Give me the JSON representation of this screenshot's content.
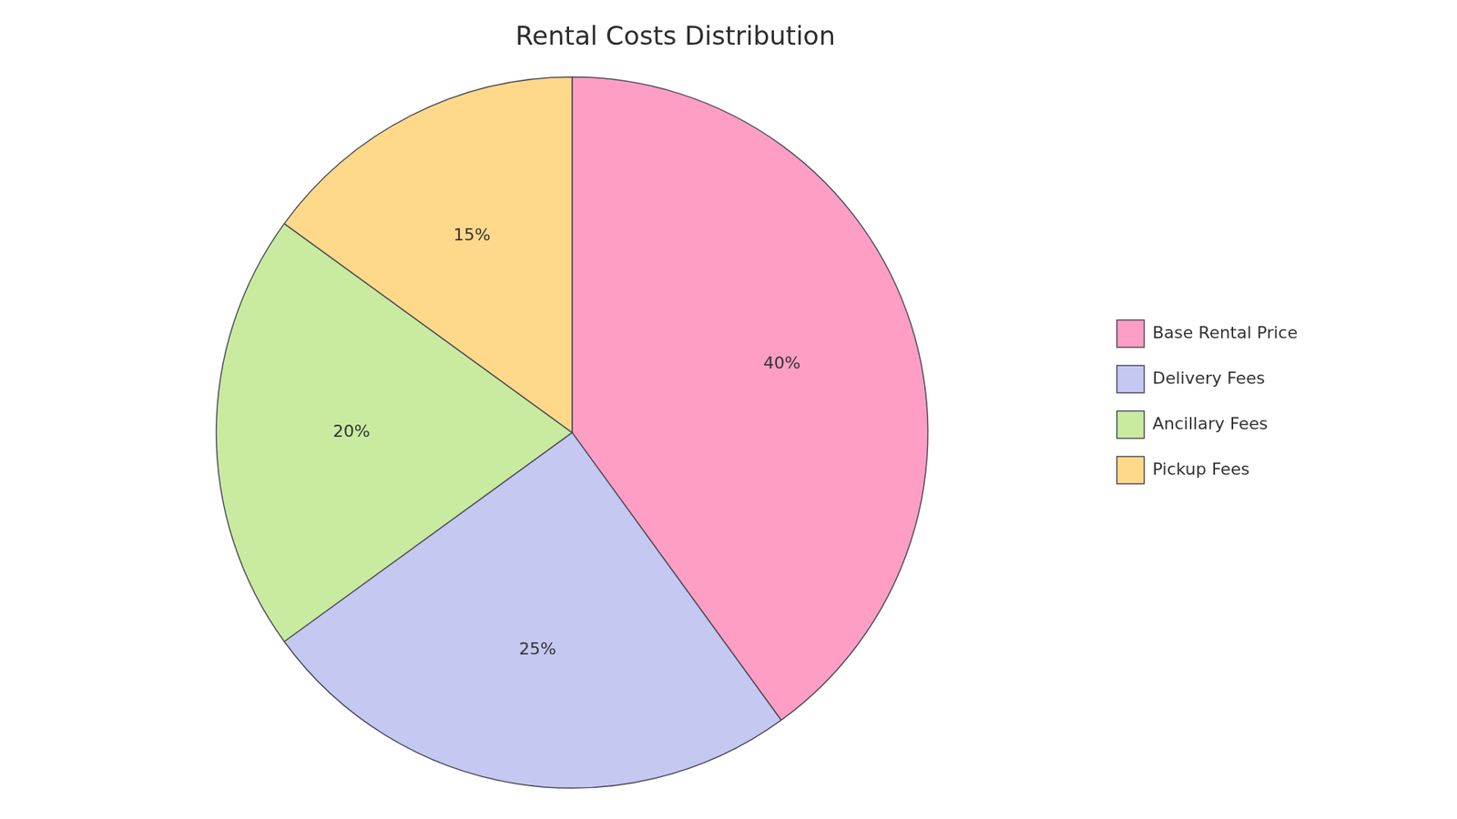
{
  "chart_data": {
    "type": "pie",
    "title": "Rental Costs Distribution",
    "categories": [
      "Base Rental Price",
      "Delivery Fees",
      "Ancillary Fees",
      "Pickup Fees"
    ],
    "values": [
      40,
      25,
      20,
      15
    ],
    "value_labels": [
      "40%",
      "25%",
      "20%",
      "15%"
    ],
    "colors": [
      "#FF9EC4",
      "#C5C8F0",
      "#C8EBA0",
      "#FFD98A"
    ],
    "data_labels": true,
    "legend": "right"
  }
}
